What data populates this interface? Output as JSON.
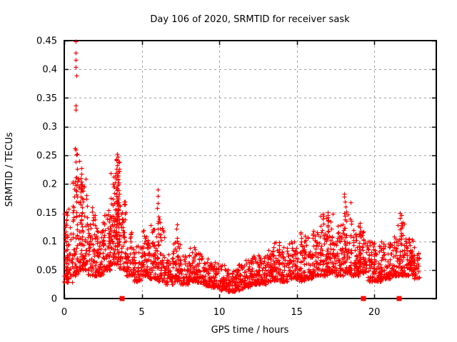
{
  "chart_data": {
    "type": "scatter",
    "title": "Day 106 of 2020, SRMTID for receiver sask",
    "xlabel": "GPS time / hours",
    "ylabel": "SRMTID / TECUs",
    "xlim": [
      0,
      24
    ],
    "ylim": [
      0,
      0.45
    ],
    "xticks": [
      0,
      5,
      10,
      15,
      20
    ],
    "xtick_labels": [
      "0",
      "5",
      "10",
      "15",
      "20"
    ],
    "yticks": [
      0,
      0.05,
      0.1,
      0.15,
      0.2,
      0.25,
      0.3,
      0.35,
      0.4,
      0.45
    ],
    "ytick_labels": [
      "0",
      "0.05",
      "0.1",
      "0.15",
      "0.2",
      "0.25",
      "0.3",
      "0.35",
      "0.4",
      "0.45"
    ],
    "grid": true,
    "grid_color": "#9e9e9e",
    "marker": {
      "shape": "plus",
      "color": "#ff0000",
      "size": 7
    },
    "series_name": "SRMTID sask",
    "seed": 106,
    "density_bins": [
      [
        0.0,
        0.5,
        55,
        0.028,
        0.16,
        2.0
      ],
      [
        0.5,
        1.0,
        60,
        0.04,
        0.22,
        2.2
      ],
      [
        1.0,
        1.5,
        70,
        0.05,
        0.21,
        2.0
      ],
      [
        1.5,
        2.0,
        60,
        0.04,
        0.16,
        1.8
      ],
      [
        2.0,
        2.5,
        60,
        0.04,
        0.14,
        1.8
      ],
      [
        2.5,
        3.0,
        65,
        0.05,
        0.16,
        1.8
      ],
      [
        3.0,
        3.5,
        85,
        0.06,
        0.24,
        1.6
      ],
      [
        3.5,
        4.0,
        65,
        0.05,
        0.17,
        2.0
      ],
      [
        4.0,
        4.5,
        55,
        0.04,
        0.12,
        2.0
      ],
      [
        4.5,
        5.0,
        50,
        0.03,
        0.1,
        2.0
      ],
      [
        5.0,
        5.5,
        60,
        0.04,
        0.12,
        1.8
      ],
      [
        5.5,
        6.0,
        55,
        0.035,
        0.13,
        2.0
      ],
      [
        6.0,
        6.5,
        50,
        0.03,
        0.14,
        2.4
      ],
      [
        6.5,
        7.0,
        50,
        0.025,
        0.08,
        1.8
      ],
      [
        7.0,
        7.5,
        50,
        0.03,
        0.1,
        2.2
      ],
      [
        7.5,
        8.0,
        50,
        0.025,
        0.075,
        1.8
      ],
      [
        8.0,
        8.5,
        55,
        0.03,
        0.09,
        2.0
      ],
      [
        8.5,
        9.0,
        55,
        0.028,
        0.08,
        2.0
      ],
      [
        9.0,
        9.5,
        55,
        0.022,
        0.07,
        1.8
      ],
      [
        9.5,
        10.0,
        55,
        0.02,
        0.065,
        1.8
      ],
      [
        10.0,
        10.5,
        55,
        0.015,
        0.06,
        1.8
      ],
      [
        10.5,
        11.0,
        55,
        0.012,
        0.055,
        1.8
      ],
      [
        11.0,
        11.5,
        55,
        0.015,
        0.06,
        1.8
      ],
      [
        11.5,
        12.0,
        55,
        0.02,
        0.07,
        1.8
      ],
      [
        12.0,
        12.5,
        55,
        0.025,
        0.075,
        1.8
      ],
      [
        12.5,
        13.0,
        55,
        0.025,
        0.08,
        1.8
      ],
      [
        13.0,
        13.5,
        55,
        0.03,
        0.09,
        1.9
      ],
      [
        13.5,
        14.0,
        55,
        0.03,
        0.1,
        2.0
      ],
      [
        14.0,
        14.5,
        55,
        0.03,
        0.09,
        1.9
      ],
      [
        14.5,
        15.0,
        55,
        0.035,
        0.105,
        2.0
      ],
      [
        15.0,
        15.5,
        55,
        0.03,
        0.1,
        2.0
      ],
      [
        15.5,
        16.0,
        55,
        0.035,
        0.11,
        2.0
      ],
      [
        16.0,
        16.5,
        55,
        0.04,
        0.12,
        2.0
      ],
      [
        16.5,
        17.0,
        60,
        0.04,
        0.15,
        2.1
      ],
      [
        17.0,
        17.5,
        60,
        0.045,
        0.15,
        2.0
      ],
      [
        17.5,
        18.0,
        55,
        0.04,
        0.13,
        2.0
      ],
      [
        18.0,
        18.5,
        60,
        0.045,
        0.17,
        2.2
      ],
      [
        18.5,
        19.0,
        55,
        0.04,
        0.12,
        2.0
      ],
      [
        19.0,
        19.5,
        55,
        0.045,
        0.13,
        2.0
      ],
      [
        19.5,
        20.0,
        55,
        0.03,
        0.1,
        2.0
      ],
      [
        20.0,
        20.5,
        55,
        0.03,
        0.1,
        2.0
      ],
      [
        20.5,
        21.0,
        55,
        0.035,
        0.1,
        2.0
      ],
      [
        21.0,
        21.5,
        55,
        0.04,
        0.11,
        2.0
      ],
      [
        21.5,
        22.0,
        55,
        0.04,
        0.14,
        2.2
      ],
      [
        22.0,
        22.5,
        60,
        0.04,
        0.105,
        1.9
      ],
      [
        22.5,
        22.9,
        40,
        0.035,
        0.09,
        1.9
      ]
    ],
    "spike_columns": [
      [
        0.12,
        0.03,
        0.155,
        22
      ],
      [
        0.78,
        0.06,
        0.26,
        18
      ],
      [
        1.1,
        0.07,
        0.225,
        22
      ],
      [
        2.9,
        0.06,
        0.15,
        15
      ],
      [
        3.4,
        0.09,
        0.25,
        30
      ],
      [
        3.5,
        0.1,
        0.235,
        20
      ],
      [
        6.05,
        0.05,
        0.188,
        14
      ],
      [
        7.3,
        0.04,
        0.128,
        10
      ],
      [
        15.3,
        0.04,
        0.115,
        8
      ],
      [
        16.95,
        0.05,
        0.152,
        14
      ],
      [
        18.1,
        0.06,
        0.186,
        16
      ],
      [
        19.05,
        0.05,
        0.135,
        12
      ],
      [
        21.7,
        0.05,
        0.146,
        12
      ],
      [
        22.3,
        0.05,
        0.105,
        14
      ]
    ],
    "outlier_points": [
      [
        0.75,
        0.449
      ],
      [
        0.75,
        0.429
      ],
      [
        0.74,
        0.417
      ],
      [
        0.75,
        0.404
      ],
      [
        0.77,
        0.389
      ],
      [
        0.73,
        0.337
      ],
      [
        0.74,
        0.329
      ],
      [
        0.68,
        0.262
      ],
      [
        0.82,
        0.252
      ],
      [
        0.98,
        0.24
      ],
      [
        3.42,
        0.252
      ],
      [
        3.36,
        0.244
      ],
      [
        3.52,
        0.238
      ],
      [
        15.25,
        0.115
      ],
      [
        20.45,
        0.1
      ],
      [
        21.72,
        0.146
      ]
    ],
    "axis_event_markers": {
      "shape": "square",
      "color": "#ff0000",
      "y": 0,
      "x": [
        3.74,
        19.31,
        21.62
      ]
    }
  }
}
